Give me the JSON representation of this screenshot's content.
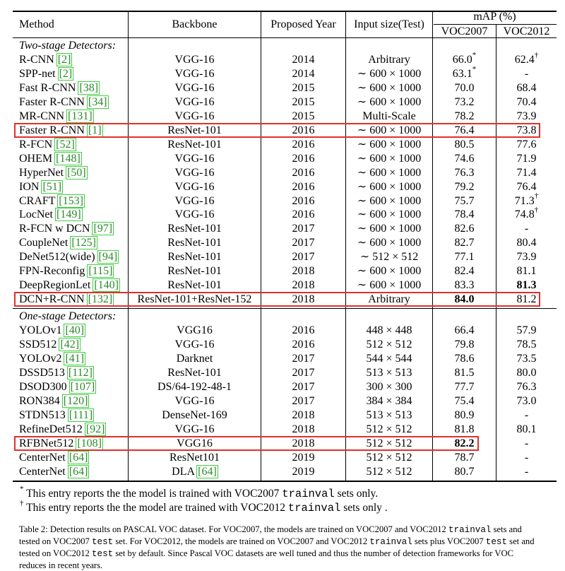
{
  "header": {
    "method": "Method",
    "backbone": "Backbone",
    "year": "Proposed Year",
    "input": "Input size(Test)",
    "map": "mAP (%)",
    "voc2007": "VOC2007",
    "voc2012": "VOC2012"
  },
  "two_stage_label": "Two-stage Detectors:",
  "one_stage_label": "One-stage Detectors:",
  "two_stage": [
    {
      "method": "R-CNN",
      "ref": "2",
      "backbone": "VGG-16",
      "year": "2014",
      "input": "Arbitrary",
      "v07": "66.0",
      "v07_mark": "*",
      "v12": "62.4",
      "v12_mark": "†"
    },
    {
      "method": "SPP-net",
      "ref": "2",
      "backbone": "VGG-16",
      "year": "2014",
      "input": "∼ 600 × 1000",
      "v07": "63.1",
      "v07_mark": "*",
      "v12": "-",
      "v12_mark": ""
    },
    {
      "method": "Fast R-CNN",
      "ref": "38",
      "backbone": "VGG-16",
      "year": "2015",
      "input": "∼ 600 × 1000",
      "v07": "70.0",
      "v07_mark": "",
      "v12": "68.4",
      "v12_mark": ""
    },
    {
      "method": "Faster R-CNN",
      "ref": "34",
      "backbone": "VGG-16",
      "year": "2015",
      "input": "∼ 600 × 1000",
      "v07": "73.2",
      "v07_mark": "",
      "v12": "70.4",
      "v12_mark": ""
    },
    {
      "method": "MR-CNN",
      "ref": "131",
      "backbone": "VGG-16",
      "year": "2015",
      "input": "Multi-Scale",
      "v07": "78.2",
      "v07_mark": "",
      "v12": "73.9",
      "v12_mark": ""
    },
    {
      "method": "Faster R-CNN",
      "ref": "1",
      "backbone": "ResNet-101",
      "year": "2016",
      "input": "∼ 600 × 1000",
      "v07": "76.4",
      "v07_mark": "",
      "v12": "73.8",
      "v12_mark": "",
      "highlight": true
    },
    {
      "method": "R-FCN",
      "ref": "52",
      "backbone": "ResNet-101",
      "year": "2016",
      "input": "∼ 600 × 1000",
      "v07": "80.5",
      "v07_mark": "",
      "v12": "77.6",
      "v12_mark": ""
    },
    {
      "method": "OHEM",
      "ref": "148",
      "backbone": "VGG-16",
      "year": "2016",
      "input": "∼ 600 × 1000",
      "v07": "74.6",
      "v07_mark": "",
      "v12": "71.9",
      "v12_mark": ""
    },
    {
      "method": "HyperNet",
      "ref": "50",
      "backbone": "VGG-16",
      "year": "2016",
      "input": "∼ 600 × 1000",
      "v07": "76.3",
      "v07_mark": "",
      "v12": "71.4",
      "v12_mark": ""
    },
    {
      "method": "ION",
      "ref": "51",
      "backbone": "VGG-16",
      "year": "2016",
      "input": "∼ 600 × 1000",
      "v07": "79.2",
      "v07_mark": "",
      "v12": "76.4",
      "v12_mark": ""
    },
    {
      "method": "CRAFT",
      "ref": "153",
      "backbone": "VGG-16",
      "year": "2016",
      "input": "∼ 600 × 1000",
      "v07": "75.7",
      "v07_mark": "",
      "v12": "71.3",
      "v12_mark": "†"
    },
    {
      "method": "LocNet",
      "ref": "149",
      "backbone": "VGG-16",
      "year": "2016",
      "input": "∼ 600 × 1000",
      "v07": "78.4",
      "v07_mark": "",
      "v12": "74.8",
      "v12_mark": "†"
    },
    {
      "method": "R-FCN w DCN",
      "ref": "97",
      "backbone": "ResNet-101",
      "year": "2017",
      "input": "∼ 600 × 1000",
      "v07": "82.6",
      "v07_mark": "",
      "v12": "-",
      "v12_mark": ""
    },
    {
      "method": "CoupleNet",
      "ref": "125",
      "backbone": "ResNet-101",
      "year": "2017",
      "input": "∼ 600 × 1000",
      "v07": "82.7",
      "v07_mark": "",
      "v12": "80.4",
      "v12_mark": ""
    },
    {
      "method": "DeNet512(wide)",
      "ref": "94",
      "backbone": "ResNet-101",
      "year": "2017",
      "input": "∼ 512 × 512",
      "v07": "77.1",
      "v07_mark": "",
      "v12": "73.9",
      "v12_mark": ""
    },
    {
      "method": "FPN-Reconfig",
      "ref": "115",
      "backbone": "ResNet-101",
      "year": "2018",
      "input": "∼ 600 × 1000",
      "v07": "82.4",
      "v07_mark": "",
      "v12": "81.1",
      "v12_mark": ""
    },
    {
      "method": "DeepRegionLet",
      "ref": "140",
      "backbone": "ResNet-101",
      "year": "2018",
      "input": "∼ 600 × 1000",
      "v07": "83.3",
      "v07_mark": "",
      "v12": "81.3",
      "v12_mark": "",
      "v12_bold": true
    },
    {
      "method": "DCN+R-CNN",
      "ref": "132",
      "backbone": "ResNet-101+ResNet-152",
      "year": "2018",
      "input": "Arbitrary",
      "v07": "84.0",
      "v07_mark": "",
      "v12": "81.2",
      "v12_mark": "",
      "v07_bold": true,
      "highlight": true
    }
  ],
  "one_stage": [
    {
      "method": "YOLOv1",
      "ref": "40",
      "backbone": "VGG16",
      "year": "2016",
      "input": "448 × 448",
      "v07": "66.4",
      "v07_mark": "",
      "v12": "57.9",
      "v12_mark": ""
    },
    {
      "method": "SSD512",
      "ref": "42",
      "backbone": "VGG-16",
      "year": "2016",
      "input": "512 × 512",
      "v07": "79.8",
      "v07_mark": "",
      "v12": "78.5",
      "v12_mark": ""
    },
    {
      "method": "YOLOv2",
      "ref": "41",
      "backbone": "Darknet",
      "year": "2017",
      "input": "544 × 544",
      "v07": "78.6",
      "v07_mark": "",
      "v12": "73.5",
      "v12_mark": ""
    },
    {
      "method": "DSSD513",
      "ref": "112",
      "backbone": "ResNet-101",
      "year": "2017",
      "input": "513 × 513",
      "v07": "81.5",
      "v07_mark": "",
      "v12": "80.0",
      "v12_mark": ""
    },
    {
      "method": "DSOD300",
      "ref": "107",
      "backbone": "DS/64-192-48-1",
      "year": "2017",
      "input": "300 × 300",
      "v07": "77.7",
      "v07_mark": "",
      "v12": "76.3",
      "v12_mark": ""
    },
    {
      "method": "RON384",
      "ref": "120",
      "backbone": "VGG-16",
      "year": "2017",
      "input": "384 × 384",
      "v07": "75.4",
      "v07_mark": "",
      "v12": "73.0",
      "v12_mark": ""
    },
    {
      "method": "STDN513",
      "ref": "111",
      "backbone": "DenseNet-169",
      "year": "2018",
      "input": "513 × 513",
      "v07": "80.9",
      "v07_mark": "",
      "v12": "-",
      "v12_mark": ""
    },
    {
      "method": "RefineDet512",
      "ref": "92",
      "backbone": "VGG-16",
      "year": "2018",
      "input": "512 × 512",
      "v07": "81.8",
      "v07_mark": "",
      "v12": "80.1",
      "v12_mark": ""
    },
    {
      "method": "RFBNet512",
      "ref": "108",
      "backbone": "VGG16",
      "year": "2018",
      "input": "512 × 512",
      "v07": "82.2",
      "v07_mark": "",
      "v12": "-",
      "v12_mark": "",
      "v07_bold": true,
      "highlight": true
    },
    {
      "method": "CenterNet",
      "ref": "64",
      "backbone": "ResNet101",
      "year": "2019",
      "input": "512 × 512",
      "v07": "78.7",
      "v07_mark": "",
      "v12": "-",
      "v12_mark": ""
    },
    {
      "method": "CenterNet",
      "ref": "64",
      "backbone": "DLA",
      "backbone_ref": "64",
      "year": "2019",
      "input": "512 × 512",
      "v07": "80.7",
      "v07_mark": "",
      "v12": "-",
      "v12_mark": ""
    }
  ],
  "footnotes": [
    {
      "mark": "*",
      "pre": "This entry reports the the model is trained with VOC2007 ",
      "code": "trainval",
      "post": " sets only."
    },
    {
      "mark": "†",
      "pre": "This entry reports the the model are trained with VOC2012 ",
      "code": "trainval",
      "post": " sets only ."
    }
  ],
  "caption": {
    "p1": "Table 2: Detection results on PASCAL VOC dataset. For VOC2007, the models are trained on VOC2007 and VOC2012 ",
    "c1": "trainval",
    "p2": " sets and tested on VOC2007 ",
    "c2": "test",
    "p3": " set. For VOC2012, the models are trained on VOC2007 and VOC2012 ",
    "c3": "trainval",
    "p4": " sets plus VOC2007 ",
    "c4": "test",
    "p5": " set and tested on VOC2012 ",
    "c5": "test",
    "p6": " set by default. Since Pascal VOC datasets are well tuned and thus the number of detection frameworks for VOC reduces in recent years."
  },
  "colors": {
    "highlight_box": "#e0302c",
    "ref_outline": "#3fcf3f"
  }
}
